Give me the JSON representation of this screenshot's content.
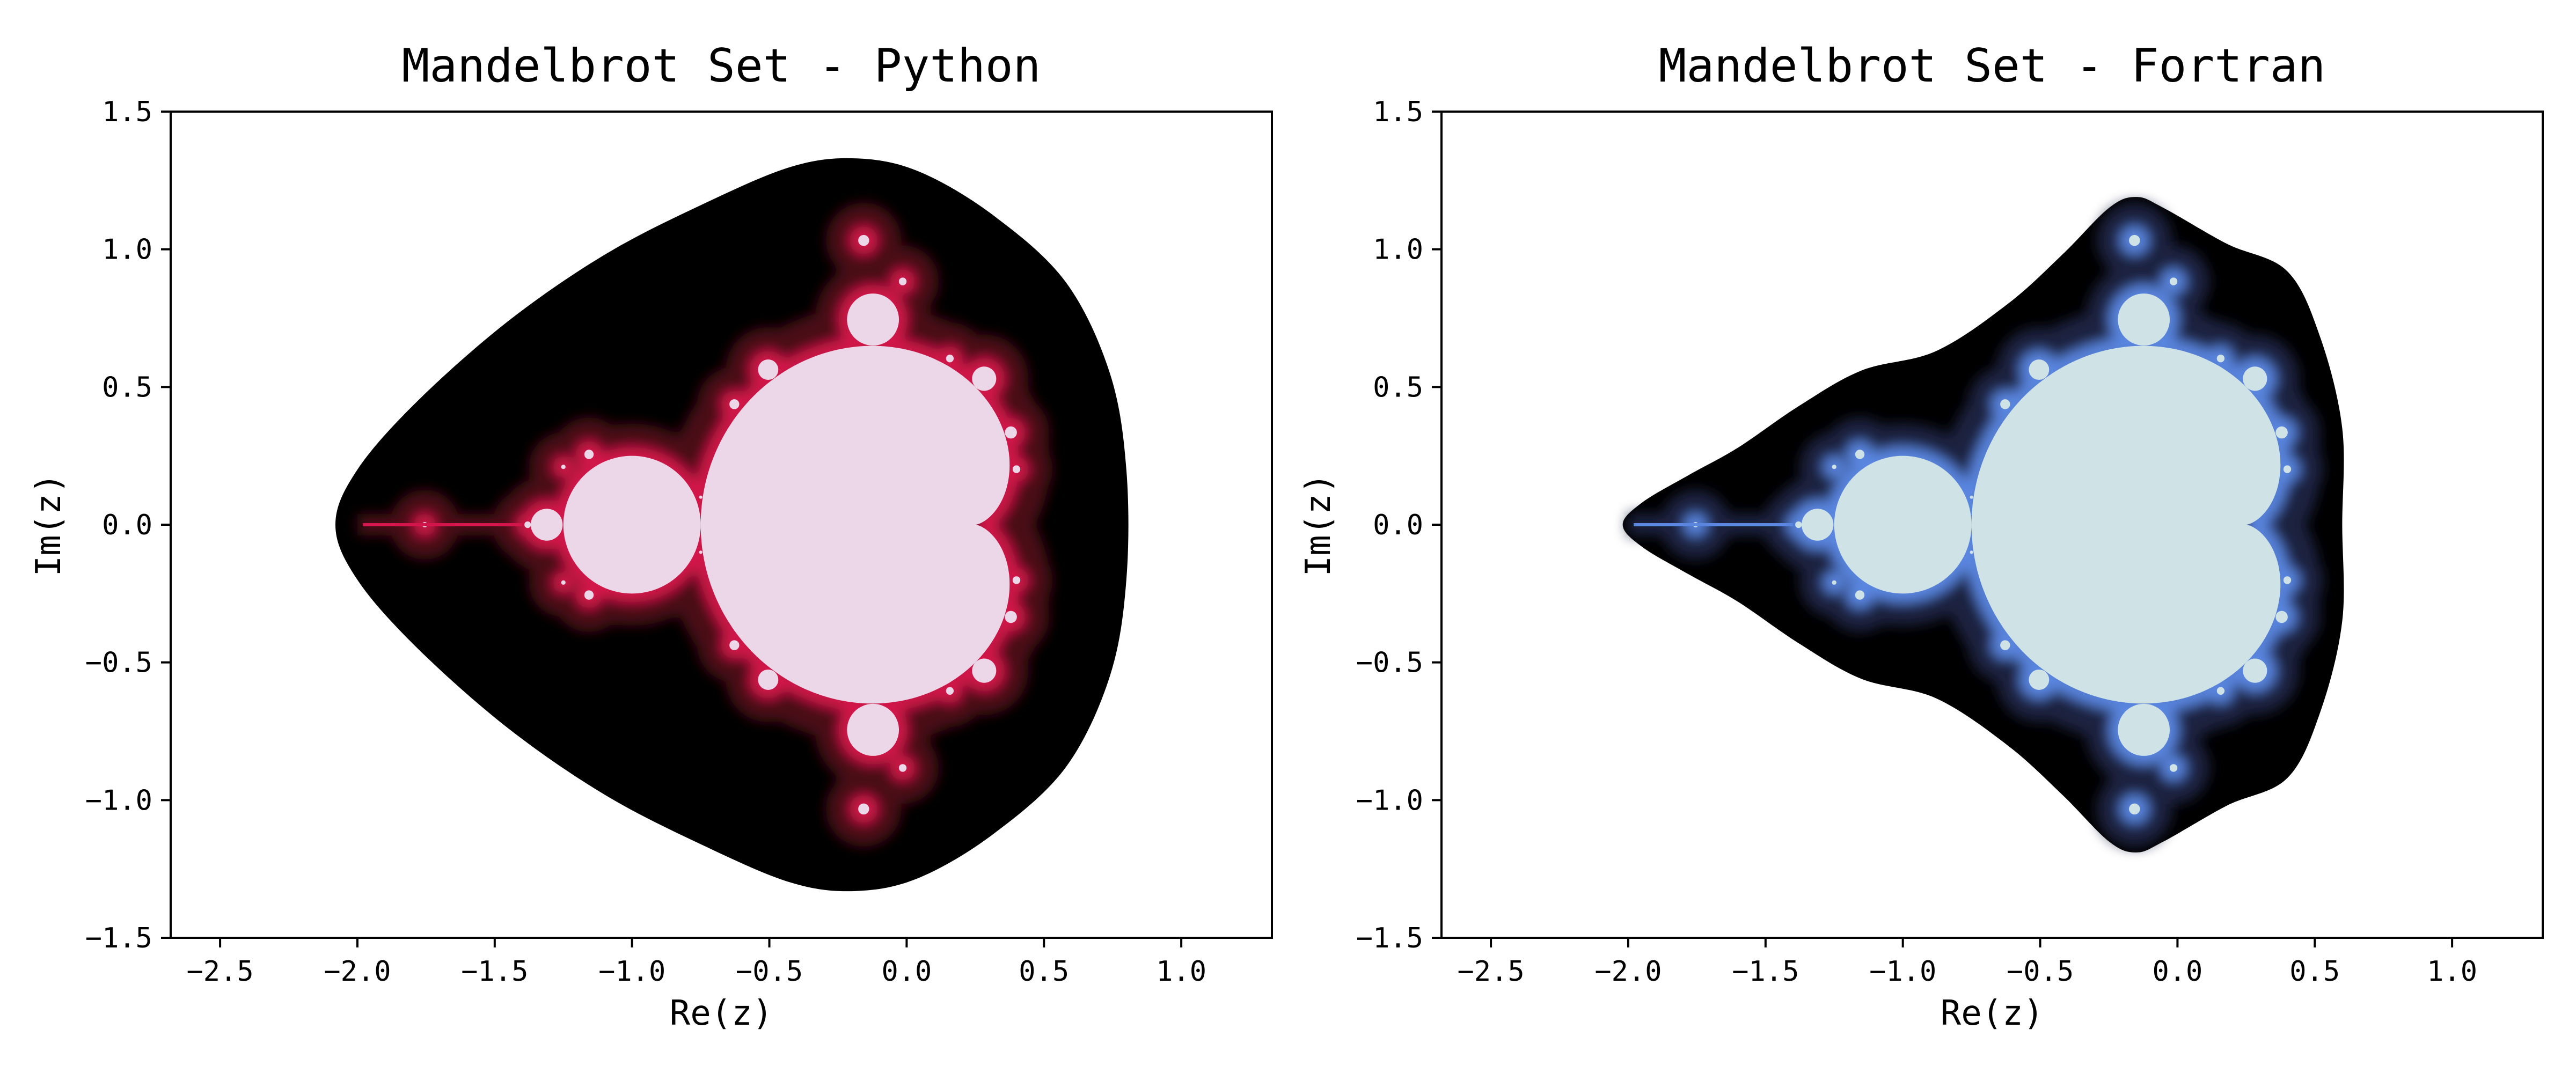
{
  "chart_data": [
    {
      "type": "heatmap",
      "title": "Mandelbrot Set - Python",
      "xlabel": "Re(z)",
      "ylabel": "Im(z)",
      "xlim": [
        -2.68,
        1.33
      ],
      "ylim": [
        -1.5,
        1.5
      ],
      "xticks": [
        -2.5,
        -2.0,
        -1.5,
        -1.0,
        -0.5,
        0.0,
        0.5,
        1.0
      ],
      "yticks": [
        -1.5,
        -1.0,
        -0.5,
        0.0,
        0.5,
        1.0,
        1.5
      ],
      "xtick_labels": [
        "−2.5",
        "−2.0",
        "−1.5",
        "−1.0",
        "−0.5",
        "0.0",
        "0.5",
        "1.0"
      ],
      "ytick_labels": [
        "−1.5",
        "−1.0",
        "−0.5",
        "0.0",
        "0.5",
        "1.0",
        "1.5"
      ],
      "grid": false,
      "colors": {
        "set_interior": "#ecd7e8",
        "escape_band": "#000000",
        "boundary_glow": "#d2154a",
        "near_boundary": "#4a0f12"
      },
      "escape_region_outline": [
        [
          -2.08,
          0.0
        ],
        [
          -2.0,
          0.2
        ],
        [
          -1.78,
          0.45
        ],
        [
          -1.45,
          0.74
        ],
        [
          -1.1,
          0.98
        ],
        [
          -0.75,
          1.16
        ],
        [
          -0.42,
          1.3
        ],
        [
          -0.18,
          1.33
        ],
        [
          0.05,
          1.28
        ],
        [
          0.32,
          1.12
        ],
        [
          0.58,
          0.88
        ],
        [
          0.74,
          0.55
        ],
        [
          0.8,
          0.2
        ],
        [
          0.8,
          -0.2
        ],
        [
          0.74,
          -0.55
        ],
        [
          0.58,
          -0.88
        ],
        [
          0.32,
          -1.12
        ],
        [
          0.05,
          -1.28
        ],
        [
          -0.18,
          -1.33
        ],
        [
          -0.42,
          -1.3
        ],
        [
          -0.75,
          -1.16
        ],
        [
          -1.1,
          -0.98
        ],
        [
          -1.45,
          -0.74
        ],
        [
          -1.78,
          -0.45
        ],
        [
          -2.0,
          -0.2
        ]
      ]
    },
    {
      "type": "heatmap",
      "title": "Mandelbrot Set - Fortran",
      "xlabel": "Re(z)",
      "ylabel": "Im(z)",
      "xlim": [
        -2.68,
        1.33
      ],
      "ylim": [
        -1.5,
        1.5
      ],
      "xticks": [
        -2.5,
        -2.0,
        -1.5,
        -1.0,
        -0.5,
        0.0,
        0.5,
        1.0
      ],
      "yticks": [
        -1.5,
        -1.0,
        -0.5,
        0.0,
        0.5,
        1.0,
        1.5
      ],
      "xtick_labels": [
        "−2.5",
        "−2.0",
        "−1.5",
        "−1.0",
        "−0.5",
        "0.0",
        "0.5",
        "1.0"
      ],
      "ytick_labels": [
        "−1.5",
        "−1.0",
        "−0.5",
        "0.0",
        "0.5",
        "1.0",
        "1.5"
      ],
      "grid": false,
      "colors": {
        "set_interior": "#cfe2e6",
        "escape_band": "#000000",
        "boundary_glow": "#5a86e0",
        "near_boundary": "#1e2140"
      },
      "escape_region_outline": [
        [
          -2.02,
          0.0
        ],
        [
          -1.95,
          0.08
        ],
        [
          -1.78,
          0.18
        ],
        [
          -1.6,
          0.28
        ],
        [
          -1.38,
          0.43
        ],
        [
          -1.15,
          0.56
        ],
        [
          -0.88,
          0.63
        ],
        [
          -0.62,
          0.8
        ],
        [
          -0.42,
          0.98
        ],
        [
          -0.25,
          1.15
        ],
        [
          -0.15,
          1.19
        ],
        [
          -0.05,
          1.15
        ],
        [
          0.18,
          1.02
        ],
        [
          0.4,
          0.92
        ],
        [
          0.52,
          0.68
        ],
        [
          0.6,
          0.35
        ],
        [
          0.6,
          0.0
        ],
        [
          0.6,
          -0.35
        ],
        [
          0.52,
          -0.68
        ],
        [
          0.4,
          -0.92
        ],
        [
          0.18,
          -1.02
        ],
        [
          -0.05,
          -1.15
        ],
        [
          -0.15,
          -1.19
        ],
        [
          -0.25,
          -1.15
        ],
        [
          -0.42,
          -0.98
        ],
        [
          -0.62,
          -0.8
        ],
        [
          -0.88,
          -0.63
        ],
        [
          -1.15,
          -0.56
        ],
        [
          -1.38,
          -0.43
        ],
        [
          -1.6,
          -0.28
        ],
        [
          -1.78,
          -0.18
        ],
        [
          -1.95,
          -0.08
        ]
      ]
    }
  ]
}
